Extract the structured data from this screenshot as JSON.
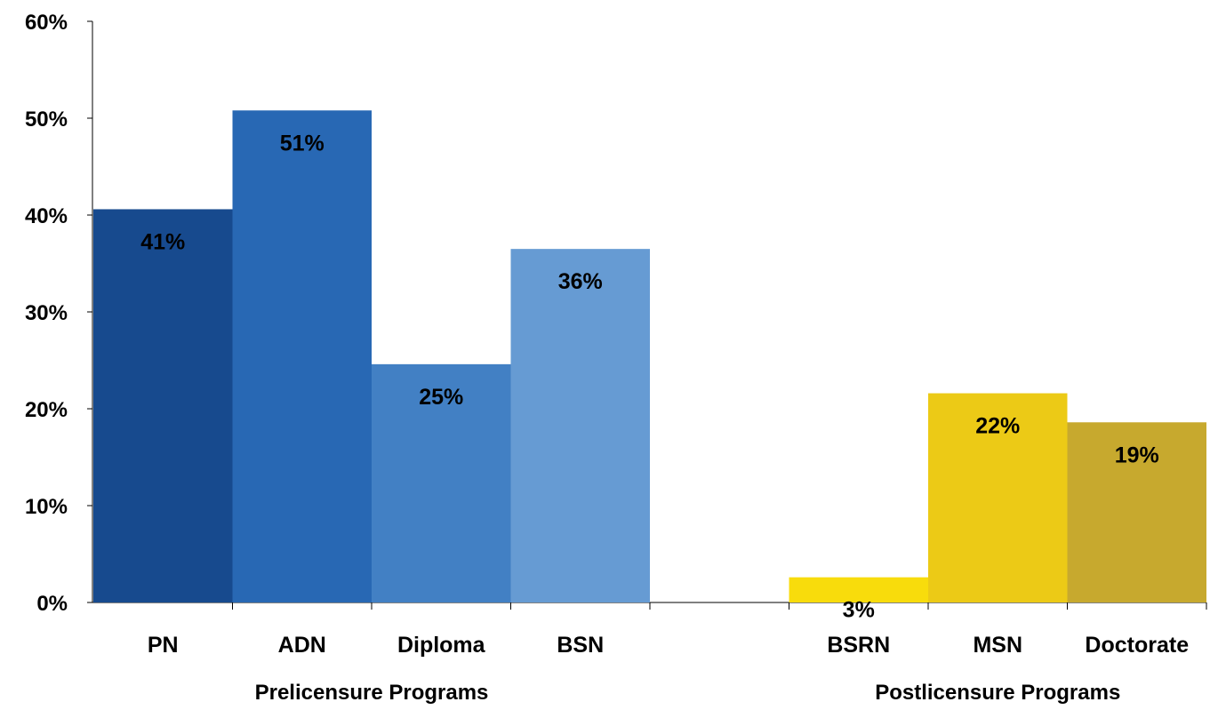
{
  "chart_data": {
    "type": "bar",
    "title": "",
    "xlabel": "",
    "ylabel": "",
    "ylim": [
      0,
      60
    ],
    "y_ticks": [
      "0%",
      "10%",
      "20%",
      "30%",
      "40%",
      "50%",
      "60%"
    ],
    "grid": false,
    "legend": "none",
    "groups": [
      {
        "label": "Prelicensure Programs",
        "bars": [
          {
            "category": "PN",
            "value": 40.6,
            "label": "41%",
            "color": "#174A8E"
          },
          {
            "category": "ADN",
            "value": 50.8,
            "label": "51%",
            "color": "#2868B4"
          },
          {
            "category": "Diploma",
            "value": 24.6,
            "label": "25%",
            "color": "#4280C4"
          },
          {
            "category": "BSN",
            "value": 36.5,
            "label": "36%",
            "color": "#669BD3"
          }
        ]
      },
      {
        "label": "Postlicensure Programs",
        "bars": [
          {
            "category": "BSRN",
            "value": 2.6,
            "label": "3%",
            "color": "#F8DC0C"
          },
          {
            "category": "MSN",
            "value": 21.6,
            "label": "22%",
            "color": "#ECCA16"
          },
          {
            "category": "Doctorate",
            "value": 18.6,
            "label": "19%",
            "color": "#C7A92E"
          }
        ]
      }
    ]
  }
}
